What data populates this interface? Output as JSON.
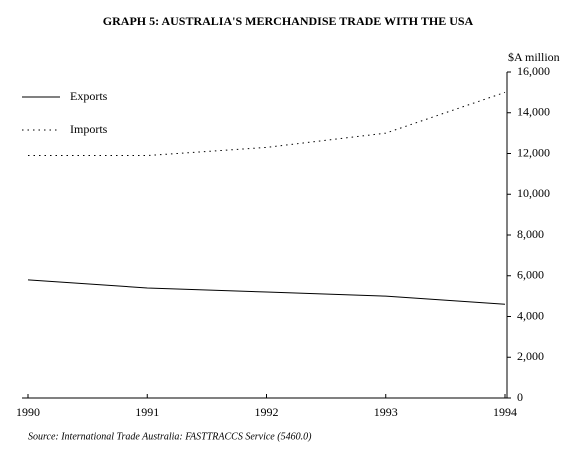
{
  "chart_data": {
    "type": "line",
    "title": "GRAPH 5: AUSTRALIA'S MERCHANDISE TRADE WITH THE USA",
    "y_axis_label": "$A million",
    "source": "Source:  International Trade Australia: FASTTRACCS Service (5460.0)",
    "x": [
      1990,
      1991,
      1992,
      1993,
      1994
    ],
    "xlim": [
      1990,
      1994
    ],
    "xticks": [
      1990,
      1991,
      1992,
      1993,
      1994
    ],
    "ylim": [
      0,
      16000
    ],
    "yticks": [
      0,
      {
        "value": 2000,
        "label": "2,000"
      },
      {
        "value": 4000,
        "label": "4,000"
      },
      {
        "value": 6000,
        "label": "6,000"
      },
      {
        "value": 8000,
        "label": "8,000"
      },
      {
        "value": 10000,
        "label": "10,000"
      },
      {
        "value": 12000,
        "label": "12,000"
      },
      {
        "value": 14000,
        "label": "14,000"
      },
      {
        "value": 16000,
        "label": "16,000"
      }
    ],
    "y_axis_side": "right",
    "grid": false,
    "legend": "top-left",
    "series": [
      {
        "name": "Exports",
        "color": "#000000",
        "style": "solid",
        "values": [
          5800,
          5400,
          5200,
          5000,
          4600
        ]
      },
      {
        "name": "Imports",
        "color": "#000000",
        "style": "dotted",
        "values": [
          11900,
          11900,
          12300,
          13000,
          15000
        ]
      }
    ]
  }
}
